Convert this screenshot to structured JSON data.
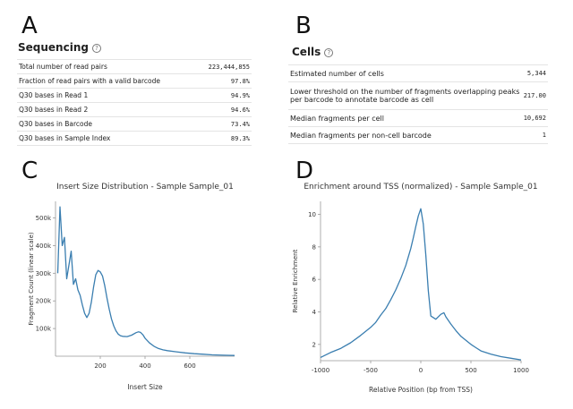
{
  "panels": {
    "a": {
      "letter": "A",
      "title": "Sequencing",
      "help": "?",
      "rows": [
        {
          "label": "Total number of read pairs",
          "value": "223,444,855"
        },
        {
          "label": "Fraction of read pairs with a valid barcode",
          "value": "97.8%"
        },
        {
          "label": "Q30 bases in Read 1",
          "value": "94.9%"
        },
        {
          "label": "Q30 bases in Read 2",
          "value": "94.6%"
        },
        {
          "label": "Q30 bases in Barcode",
          "value": "73.4%"
        },
        {
          "label": "Q30 bases in Sample Index",
          "value": "89.3%"
        }
      ]
    },
    "b": {
      "letter": "B",
      "title": "Cells",
      "help": "?",
      "rows": [
        {
          "label": "Estimated number of cells",
          "value": "5,344"
        },
        {
          "label": "Lower threshold on the number of fragments overlapping peaks per barcode to annotate barcode as cell",
          "value": "217.00"
        },
        {
          "label": "Median fragments per cell",
          "value": "10,692"
        },
        {
          "label": "Median fragments per non-cell barcode",
          "value": "1"
        }
      ]
    },
    "c": {
      "letter": "C"
    },
    "d": {
      "letter": "D"
    }
  },
  "chart_data": [
    {
      "type": "line",
      "title": "Insert Size Distribution - Sample Sample_01",
      "xlabel": "Insert Size",
      "ylabel": "Fragment Count (linear scale)",
      "xlim": [
        0,
        800
      ],
      "ylim": [
        0,
        560000
      ],
      "xticks": [
        200,
        400,
        600
      ],
      "yticks": [
        100000,
        200000,
        300000,
        400000,
        500000
      ],
      "ytick_labels": [
        "100k",
        "200k",
        "300k",
        "400k",
        "500k"
      ],
      "grid": false,
      "color": "#3a7eb0",
      "series": [
        {
          "x": [
            10,
            20,
            30,
            40,
            50,
            60,
            70,
            80,
            90,
            100,
            110,
            120,
            130,
            140,
            150,
            160,
            170,
            180,
            190,
            200,
            210,
            220,
            230,
            240,
            250,
            260,
            270,
            280,
            290,
            300,
            320,
            340,
            360,
            370,
            380,
            390,
            400,
            420,
            440,
            460,
            480,
            500,
            540,
            580,
            620,
            660,
            700,
            750,
            800
          ],
          "y": [
            300000,
            540000,
            400000,
            430000,
            280000,
            330000,
            380000,
            260000,
            280000,
            240000,
            220000,
            185000,
            155000,
            140000,
            155000,
            195000,
            250000,
            295000,
            310000,
            305000,
            290000,
            255000,
            210000,
            170000,
            135000,
            110000,
            92000,
            80000,
            74000,
            72000,
            71000,
            76000,
            85000,
            88000,
            86000,
            78000,
            65000,
            48000,
            36000,
            28000,
            23000,
            20000,
            16000,
            12000,
            9000,
            7000,
            5000,
            3500,
            2500
          ]
        }
      ]
    },
    {
      "type": "line",
      "title": "Enrichment around TSS (normalized) - Sample Sample_01",
      "xlabel": "Relative Position (bp from TSS)",
      "ylabel": "Relative Enrichment",
      "xlim": [
        -1000,
        1000
      ],
      "ylim": [
        1,
        10.8
      ],
      "xticks": [
        -1000,
        -500,
        0,
        500,
        1000
      ],
      "yticks": [
        2,
        4,
        6,
        8,
        10
      ],
      "grid": false,
      "color": "#3a7eb0",
      "series": [
        {
          "x": [
            -1000,
            -900,
            -800,
            -700,
            -600,
            -500,
            -450,
            -400,
            -350,
            -300,
            -250,
            -200,
            -150,
            -100,
            -75,
            -50,
            -25,
            0,
            25,
            50,
            75,
            100,
            150,
            200,
            230,
            250,
            300,
            350,
            400,
            450,
            500,
            550,
            600,
            700,
            800,
            900,
            1000
          ],
          "y": [
            1.2,
            1.5,
            1.75,
            2.1,
            2.55,
            3.05,
            3.35,
            3.8,
            4.2,
            4.75,
            5.35,
            6.05,
            6.85,
            7.9,
            8.55,
            9.25,
            9.9,
            10.35,
            9.4,
            7.5,
            5.3,
            3.75,
            3.55,
            3.85,
            3.95,
            3.7,
            3.25,
            2.85,
            2.5,
            2.25,
            2.0,
            1.8,
            1.6,
            1.4,
            1.25,
            1.15,
            1.05
          ]
        }
      ]
    }
  ]
}
